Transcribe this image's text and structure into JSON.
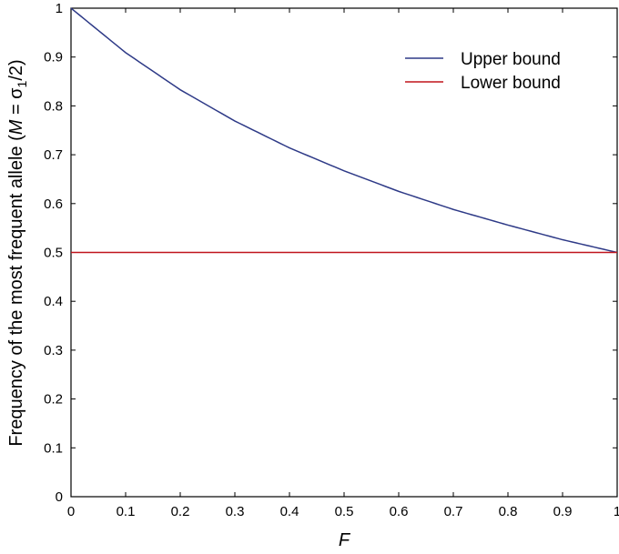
{
  "chart_data": {
    "type": "line",
    "xlabel": "F",
    "ylabel": {
      "prefix": "Frequency of the most frequent allele (",
      "var": "M",
      "eq": " = σ",
      "sub": "1",
      "suffix": "/2)"
    },
    "xlim": [
      0,
      1
    ],
    "ylim": [
      0,
      1
    ],
    "xticks": [
      0,
      0.1,
      0.2,
      0.3,
      0.4,
      0.5,
      0.6,
      0.7,
      0.8,
      0.9,
      1
    ],
    "yticks": [
      0,
      0.1,
      0.2,
      0.3,
      0.4,
      0.5,
      0.6,
      0.7,
      0.8,
      0.9,
      1
    ],
    "xtick_labels": [
      "0",
      "0.1",
      "0.2",
      "0.3",
      "0.4",
      "0.5",
      "0.6",
      "0.7",
      "0.8",
      "0.9",
      "1"
    ],
    "ytick_labels": [
      "0",
      "0.1",
      "0.2",
      "0.3",
      "0.4",
      "0.5",
      "0.6",
      "0.7",
      "0.8",
      "0.9",
      "1"
    ],
    "grid": false,
    "legend_position": "top-right",
    "series": [
      {
        "name": "Upper bound",
        "color": "#2e3a87",
        "x": [
          0,
          0.1,
          0.2,
          0.3,
          0.4,
          0.5,
          0.6,
          0.7,
          0.8,
          0.9,
          1
        ],
        "y": [
          1,
          0.909,
          0.833,
          0.769,
          0.714,
          0.667,
          0.625,
          0.588,
          0.556,
          0.526,
          0.5
        ]
      },
      {
        "name": "Lower bound",
        "color": "#c0141c",
        "x": [
          0,
          1
        ],
        "y": [
          0.5,
          0.5
        ]
      }
    ]
  }
}
